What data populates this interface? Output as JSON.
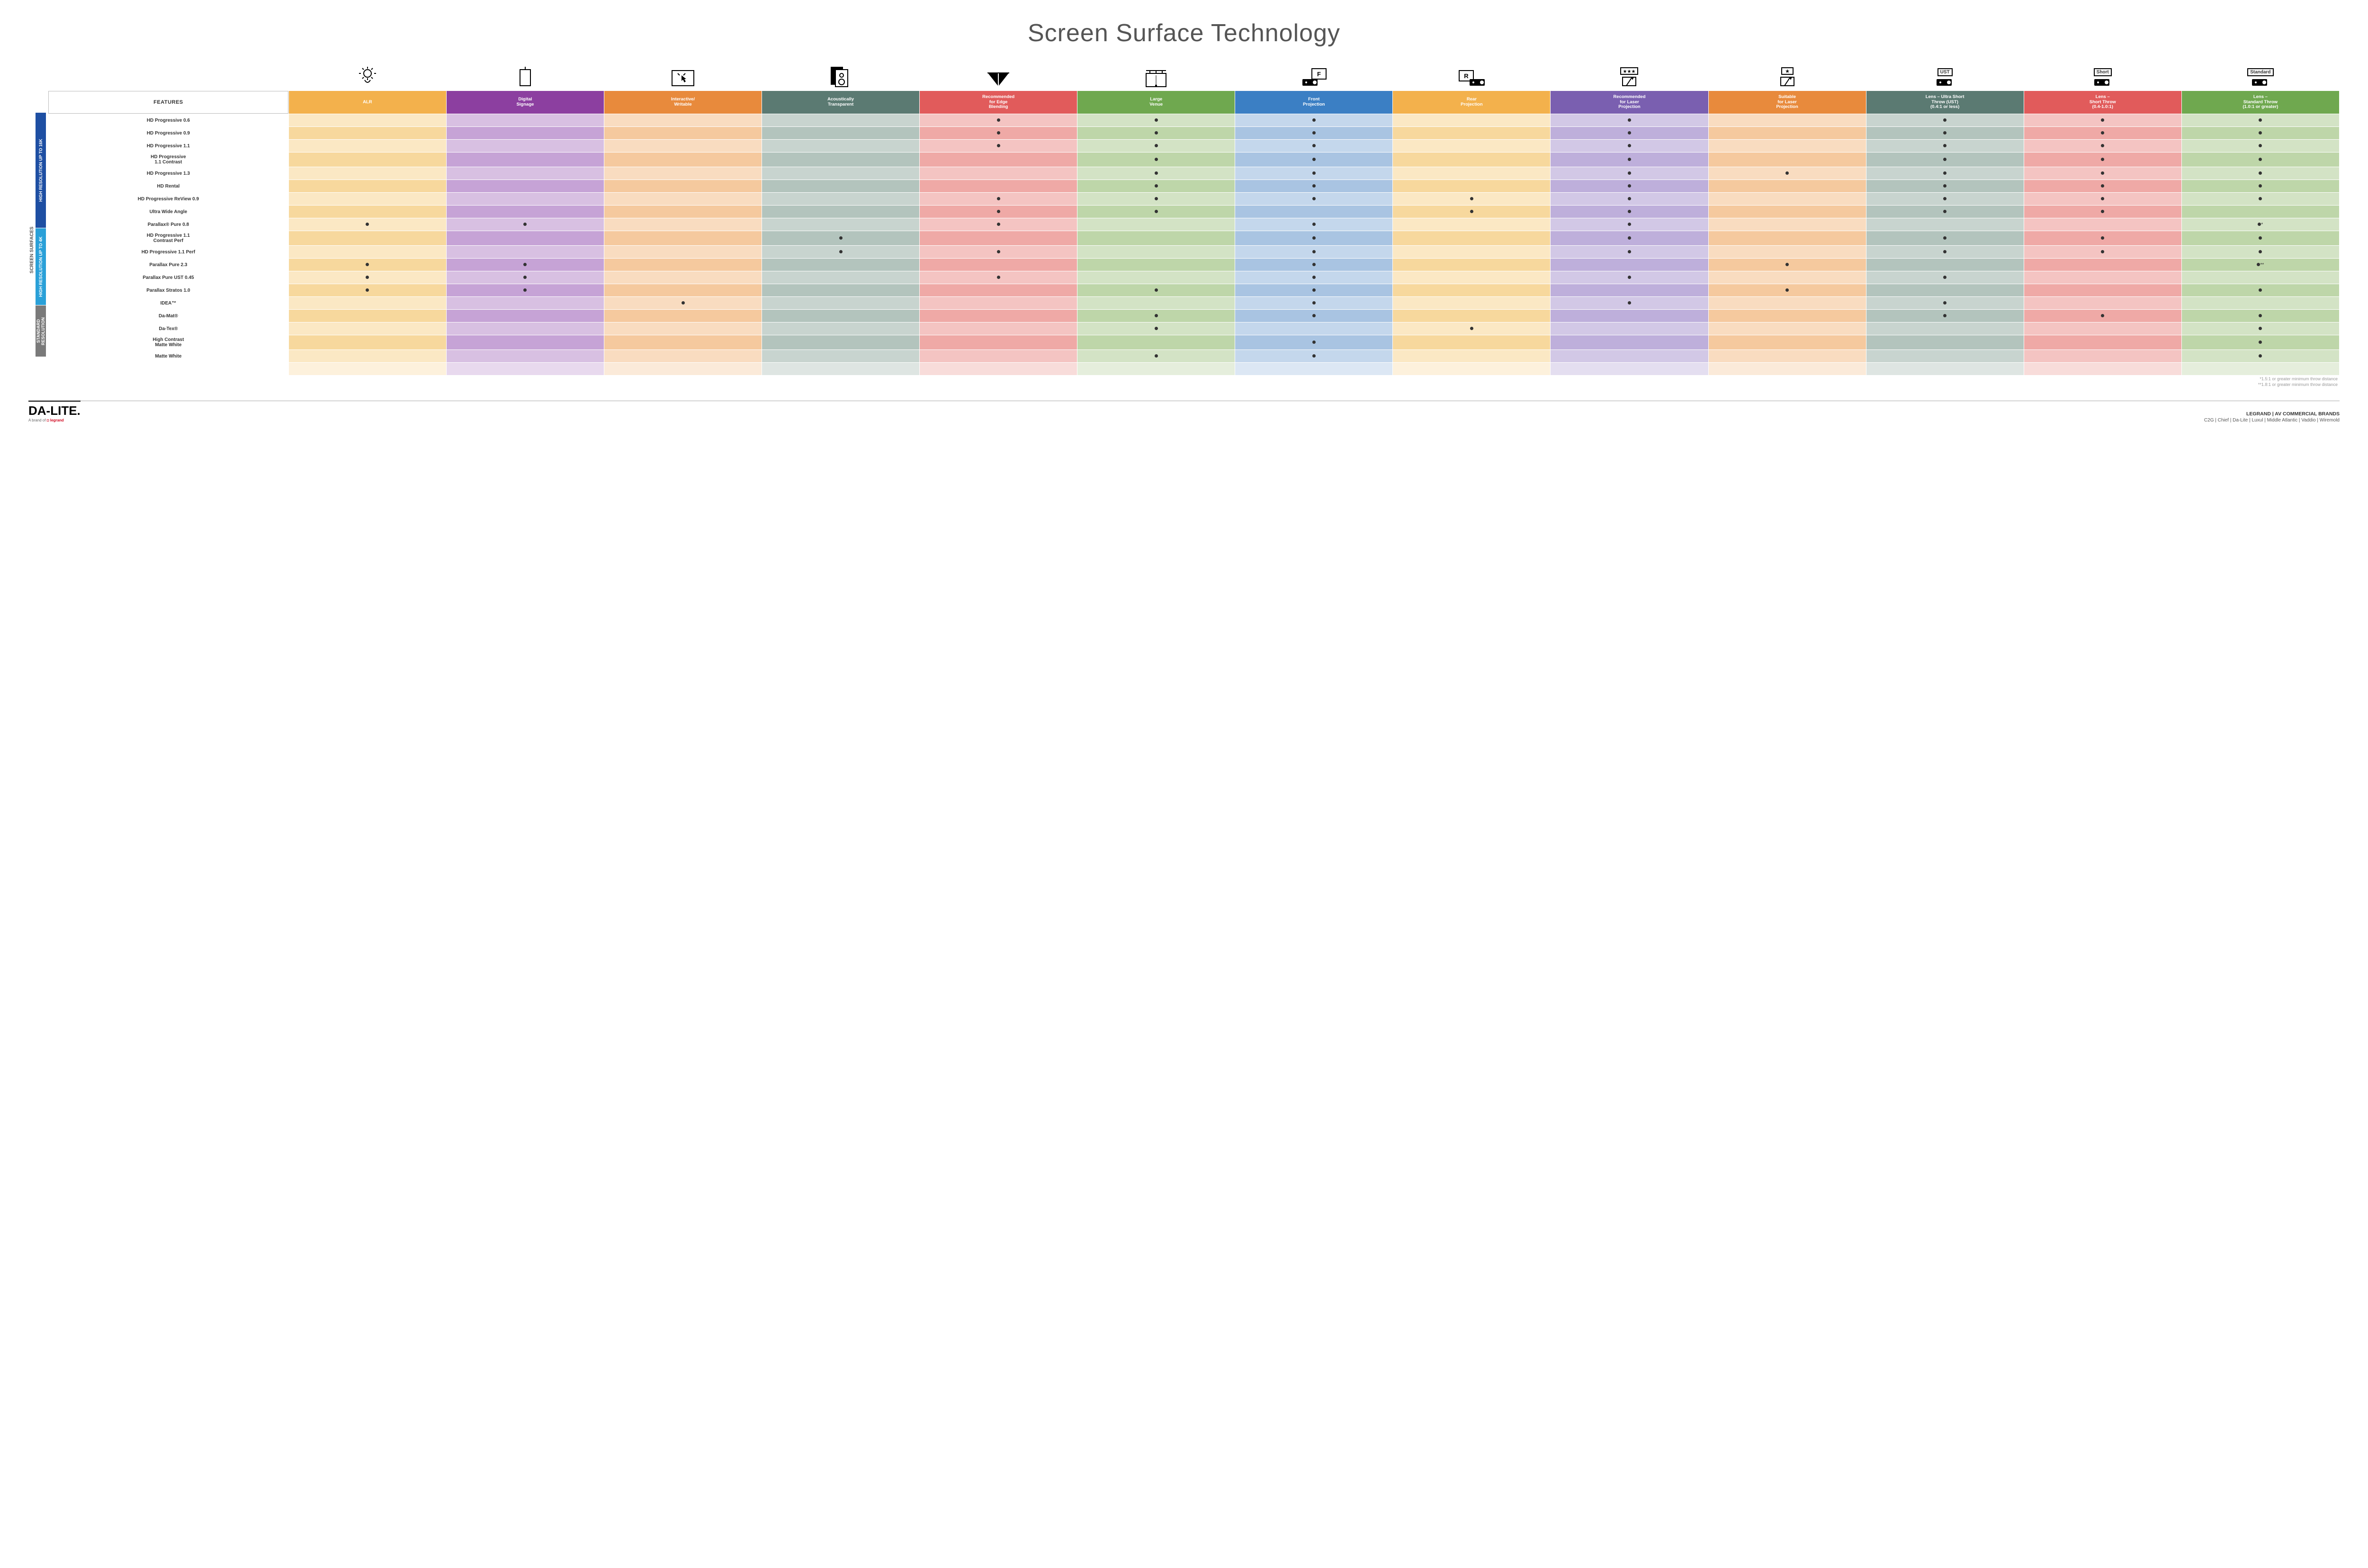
{
  "title": "Screen Surface Technology",
  "features_label": "FEATURES",
  "side_label": "SCREEN SURFACES",
  "columns": [
    {
      "key": "alr",
      "label": "ALR",
      "color": "#f3b14c"
    },
    {
      "key": "digital",
      "label": "Digital\nSignage",
      "color": "#8c3fa0"
    },
    {
      "key": "interactive",
      "label": "Interactive/\nWritable",
      "color": "#e88a3c"
    },
    {
      "key": "acoustic",
      "label": "Acoustically\nTransparent",
      "color": "#5b7a72"
    },
    {
      "key": "edge",
      "label": "Recommended\nfor Edge\nBlending",
      "color": "#e15b5b"
    },
    {
      "key": "large",
      "label": "Large\nVenue",
      "color": "#6fa84f"
    },
    {
      "key": "front",
      "label": "Front\nProjection",
      "color": "#3b7fc4"
    },
    {
      "key": "rear",
      "label": "Rear\nProjection",
      "color": "#f3b14c"
    },
    {
      "key": "reclaser",
      "label": "Recommended\nfor Laser\nProjection",
      "color": "#7a5fb0"
    },
    {
      "key": "suitlaser",
      "label": "Suitable\nfor Laser\nProjection",
      "color": "#e88a3c"
    },
    {
      "key": "ust",
      "label": "Lens – Ultra Short\nThrow (UST)\n(0.4:1 or less)",
      "color": "#5b7a72"
    },
    {
      "key": "short",
      "label": "Lens –\nShort Throw\n(0.4-1.0:1)",
      "color": "#e15b5b"
    },
    {
      "key": "std",
      "label": "Lens –\nStandard Throw\n(1.0:1 or greater)",
      "color": "#6fa84f"
    }
  ],
  "column_tints": {
    "alr": {
      "light": "#fbe8c4",
      "dark": "#f7d89d"
    },
    "digital": {
      "light": "#d8c0e2",
      "dark": "#c6a3d6"
    },
    "interactive": {
      "light": "#f9dcc0",
      "dark": "#f5c99e"
    },
    "acoustic": {
      "light": "#c8d4cf",
      "dark": "#b3c4bd"
    },
    "edge": {
      "light": "#f4c4c2",
      "dark": "#efa9a6"
    },
    "large": {
      "light": "#d3e3c5",
      "dark": "#bed6a9"
    },
    "front": {
      "light": "#c4d7ec",
      "dark": "#a9c4e2"
    },
    "rear": {
      "light": "#fbe8c4",
      "dark": "#f7d89d"
    },
    "reclaser": {
      "light": "#d2c8e6",
      "dark": "#beafdb"
    },
    "suitlaser": {
      "light": "#f9dcc0",
      "dark": "#f5c99e"
    },
    "ust": {
      "light": "#c8d4cf",
      "dark": "#b3c4bd"
    },
    "short": {
      "light": "#f4c4c2",
      "dark": "#efa9a6"
    },
    "std": {
      "light": "#d3e3c5",
      "dark": "#bed6a9"
    }
  },
  "groups": [
    {
      "label": "HIGH RESOLUTION UP TO 16K",
      "color": "#1e4fa3",
      "rows": 9
    },
    {
      "label": "HIGH RESOLUTION UP TO 4K",
      "color": "#2aa0d8",
      "rows": 6
    },
    {
      "label": "STANDARD\nRESOLUTION",
      "color": "#7a7a7a",
      "rows": 4
    }
  ],
  "rows": [
    {
      "label": "HD Progressive 0.6",
      "dots": {
        "edge": "•",
        "large": "•",
        "front": "•",
        "reclaser": "•",
        "ust": "•",
        "short": "•",
        "std": "•"
      }
    },
    {
      "label": "HD Progressive 0.9",
      "dots": {
        "edge": "•",
        "large": "•",
        "front": "•",
        "reclaser": "•",
        "ust": "•",
        "short": "•",
        "std": "•"
      }
    },
    {
      "label": "HD Progressive 1.1",
      "dots": {
        "edge": "•",
        "large": "•",
        "front": "•",
        "reclaser": "•",
        "ust": "•",
        "short": "•",
        "std": "•"
      }
    },
    {
      "label": "HD Progressive\n1.1 Contrast",
      "dots": {
        "large": "•",
        "front": "•",
        "reclaser": "•",
        "ust": "•",
        "short": "•",
        "std": "•"
      }
    },
    {
      "label": "HD Progressive 1.3",
      "dots": {
        "large": "•",
        "front": "•",
        "reclaser": "•",
        "suitlaser": "•",
        "ust": "•",
        "short": "•",
        "std": "•"
      }
    },
    {
      "label": "HD Rental",
      "dots": {
        "large": "•",
        "front": "•",
        "reclaser": "•",
        "ust": "•",
        "short": "•",
        "std": "•"
      }
    },
    {
      "label": "HD Progressive ReView 0.9",
      "dots": {
        "edge": "•",
        "large": "•",
        "front": "•",
        "rear": "•",
        "reclaser": "•",
        "ust": "•",
        "short": "•",
        "std": "•"
      }
    },
    {
      "label": "Ultra Wide Angle",
      "dots": {
        "edge": "•",
        "large": "•",
        "rear": "•",
        "reclaser": "•",
        "ust": "•",
        "short": "•"
      }
    },
    {
      "label": "Parallax® Pure 0.8",
      "dots": {
        "alr": "•",
        "digital": "•",
        "edge": "•",
        "front": "•",
        "reclaser": "•",
        "std": "•*"
      }
    },
    {
      "label": "HD Progressive 1.1\nContrast Perf",
      "dots": {
        "acoustic": "•",
        "front": "•",
        "reclaser": "•",
        "ust": "•",
        "short": "•",
        "std": "•"
      }
    },
    {
      "label": "HD Progressive 1.1 Perf",
      "dots": {
        "acoustic": "•",
        "edge": "•",
        "front": "•",
        "reclaser": "•",
        "ust": "•",
        "short": "•",
        "std": "•"
      }
    },
    {
      "label": "Parallax Pure 2.3",
      "dots": {
        "alr": "•",
        "digital": "•",
        "front": "•",
        "suitlaser": "•",
        "std": "•**"
      }
    },
    {
      "label": "Parallax Pure UST 0.45",
      "dots": {
        "alr": "•",
        "digital": "•",
        "edge": "•",
        "front": "•",
        "reclaser": "•",
        "ust": "•"
      }
    },
    {
      "label": "Parallax Stratos 1.0",
      "dots": {
        "alr": "•",
        "digital": "•",
        "large": "•",
        "front": "•",
        "suitlaser": "•",
        "std": "•"
      }
    },
    {
      "label": "IDEA™",
      "dots": {
        "interactive": "•",
        "front": "•",
        "reclaser": "•",
        "ust": "•"
      }
    },
    {
      "label": "Da-Mat®",
      "dots": {
        "large": "•",
        "front": "•",
        "ust": "•",
        "short": "•",
        "std": "•"
      }
    },
    {
      "label": "Da-Tex®",
      "dots": {
        "large": "•",
        "rear": "•",
        "std": "•"
      }
    },
    {
      "label": "High Contrast\nMatte White",
      "dots": {
        "front": "•",
        "std": "•"
      }
    },
    {
      "label": "Matte White",
      "dots": {
        "large": "•",
        "front": "•",
        "std": "•"
      }
    }
  ],
  "footnotes": [
    "*1.5:1 or greater minimum throw distance",
    "**1.8:1 or greater minimum throw distance"
  ],
  "footer": {
    "logo_main": "DA-LITE.",
    "logo_sub_prefix": "A brand of ",
    "logo_sub_brand": "legrand",
    "right_top": "LEGRAND | AV COMMERCIAL BRANDS",
    "right_brands": "C2G  |  Chief  |  Da-Lite  |  Luxul  |  Middle Atlantic  |  Vaddio  |  Wiremold"
  },
  "icons": {
    "lens_labels": {
      "ust": "UST",
      "short": "Short",
      "std": "Standard"
    }
  }
}
